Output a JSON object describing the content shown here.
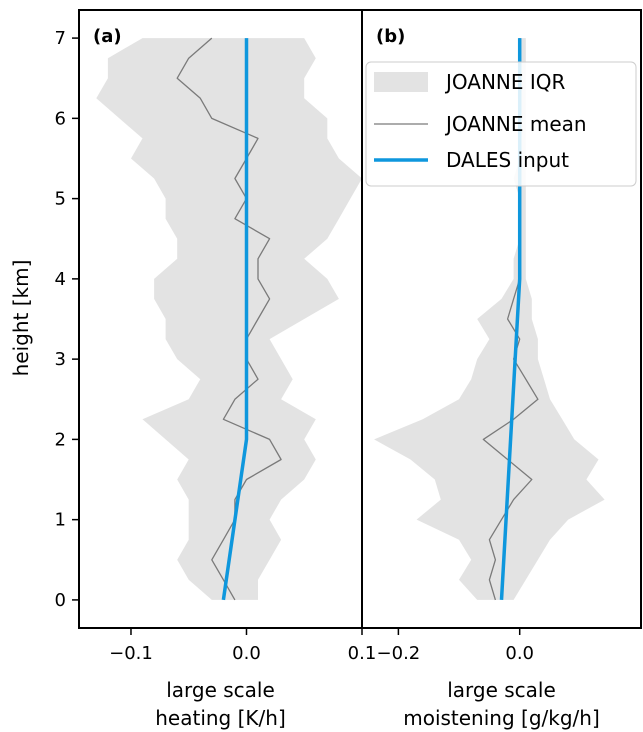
{
  "chart_data": {
    "type": "line",
    "ylabel": "height [km]",
    "ylim": [
      -0.35,
      7.35
    ],
    "yticks": [
      0,
      1,
      2,
      3,
      4,
      5,
      6,
      7
    ],
    "ytick_labels": [
      "0",
      "1",
      "2",
      "3",
      "4",
      "5",
      "6",
      "7"
    ],
    "legend": {
      "placement": "upper right of panel (b)",
      "entries": [
        "JOANNE IQR",
        "JOANNE mean",
        "DALES input"
      ]
    },
    "colors": {
      "iqr": "#e3e3e3",
      "mean": "#7a7a7a",
      "dales": "#0e97dd"
    },
    "panels": [
      {
        "label": "(a)",
        "xlabel_line1": "large scale",
        "xlabel_line2": "heating [K/h]",
        "xlim": [
          -0.145,
          0.1
        ],
        "xticks": [
          -0.1,
          0.0,
          0.1
        ],
        "xtick_labels": [
          "−0.1",
          "0.0",
          "0.1"
        ],
        "series": [
          {
            "name": "JOANNE IQR",
            "kind": "band",
            "heights": [
              0,
              0.25,
              0.5,
              0.75,
              1.0,
              1.25,
              1.5,
              1.75,
              2.0,
              2.25,
              2.5,
              2.75,
              3.0,
              3.25,
              3.5,
              3.75,
              4.0,
              4.25,
              4.5,
              4.75,
              5.0,
              5.25,
              5.5,
              5.75,
              6.0,
              6.25,
              6.5,
              6.75,
              7.0
            ],
            "lower": [
              -0.03,
              -0.05,
              -0.06,
              -0.05,
              -0.05,
              -0.05,
              -0.06,
              -0.05,
              -0.07,
              -0.09,
              -0.05,
              -0.04,
              -0.06,
              -0.07,
              -0.07,
              -0.08,
              -0.08,
              -0.06,
              -0.06,
              -0.07,
              -0.07,
              -0.08,
              -0.1,
              -0.09,
              -0.11,
              -0.13,
              -0.12,
              -0.12,
              -0.09
            ],
            "upper": [
              0.01,
              0.01,
              0.02,
              0.03,
              0.02,
              0.03,
              0.05,
              0.06,
              0.05,
              0.06,
              0.03,
              0.04,
              0.03,
              0.02,
              0.05,
              0.08,
              0.07,
              0.05,
              0.07,
              0.08,
              0.09,
              0.1,
              0.08,
              0.07,
              0.07,
              0.05,
              0.05,
              0.06,
              0.05
            ]
          },
          {
            "name": "JOANNE mean",
            "kind": "line",
            "heights": [
              0,
              0.25,
              0.5,
              0.75,
              1.0,
              1.25,
              1.5,
              1.75,
              2.0,
              2.25,
              2.5,
              2.75,
              3.0,
              3.25,
              3.5,
              3.75,
              4.0,
              4.25,
              4.5,
              4.75,
              5.0,
              5.25,
              5.5,
              5.75,
              6.0,
              6.25,
              6.5,
              6.75,
              7.0
            ],
            "values": [
              -0.01,
              -0.02,
              -0.03,
              -0.02,
              -0.01,
              -0.01,
              0.0,
              0.03,
              0.02,
              -0.02,
              -0.01,
              0.01,
              0.0,
              0.0,
              0.01,
              0.02,
              0.01,
              0.01,
              0.02,
              -0.01,
              0.0,
              -0.01,
              0.0,
              0.01,
              -0.03,
              -0.04,
              -0.06,
              -0.05,
              -0.03
            ]
          },
          {
            "name": "DALES input",
            "kind": "line",
            "heights": [
              0,
              2.0,
              7.0
            ],
            "values": [
              -0.02,
              0.0,
              0.0
            ]
          }
        ]
      },
      {
        "label": "(b)",
        "xlabel_line1": "large scale",
        "xlabel_line2": "moistening [g/kg/h]",
        "xlim": [
          -0.26,
          0.2
        ],
        "xticks": [
          -0.2,
          0.0
        ],
        "xtick_labels": [
          "−0.2",
          "0.0"
        ],
        "series": [
          {
            "name": "JOANNE IQR",
            "kind": "band",
            "heights": [
              0,
              0.25,
              0.5,
              0.75,
              1.0,
              1.25,
              1.5,
              1.75,
              2.0,
              2.25,
              2.5,
              2.75,
              3.0,
              3.25,
              3.5,
              3.75,
              4.0,
              4.25,
              4.5,
              4.75,
              5.0,
              5.25,
              5.5,
              5.75,
              6.0,
              6.25,
              6.5,
              6.75,
              7.0
            ],
            "lower": [
              -0.07,
              -0.1,
              -0.08,
              -0.1,
              -0.17,
              -0.13,
              -0.14,
              -0.18,
              -0.24,
              -0.16,
              -0.1,
              -0.08,
              -0.07,
              -0.05,
              -0.07,
              -0.03,
              -0.01,
              -0.01,
              0.0,
              0.0,
              0.0,
              -0.01,
              0.0,
              0.0,
              0.0,
              0.0,
              0.0,
              0.0,
              0.0
            ],
            "upper": [
              -0.01,
              0.01,
              0.03,
              0.05,
              0.08,
              0.14,
              0.11,
              0.13,
              0.09,
              0.07,
              0.05,
              0.04,
              0.03,
              0.03,
              0.02,
              0.02,
              0.01,
              0.01,
              0.01,
              0.01,
              0.01,
              0.01,
              0.01,
              0.01,
              0.01,
              0.01,
              0.01,
              0.01,
              0.01
            ]
          },
          {
            "name": "JOANNE mean",
            "kind": "line",
            "heights": [
              0,
              0.25,
              0.5,
              0.75,
              1.0,
              1.25,
              1.5,
              1.75,
              2.0,
              2.25,
              2.5,
              2.75,
              3.0,
              3.25,
              3.5,
              3.75,
              4.0,
              4.25,
              4.5,
              4.75,
              5.0,
              5.25,
              5.5,
              5.75,
              6.0,
              6.25,
              6.5,
              6.75,
              7.0
            ],
            "values": [
              -0.04,
              -0.05,
              -0.04,
              -0.05,
              -0.03,
              -0.01,
              0.02,
              -0.02,
              -0.06,
              -0.01,
              0.03,
              0.01,
              -0.01,
              0.0,
              -0.02,
              -0.01,
              0.0,
              0.0,
              0.0,
              0.0,
              0.0,
              0.0,
              0.0,
              0.0,
              0.0,
              0.0,
              0.0,
              0.0,
              0.0
            ]
          },
          {
            "name": "DALES input",
            "kind": "line",
            "heights": [
              0,
              4.0,
              7.0
            ],
            "values": [
              -0.03,
              0.0,
              0.0
            ]
          }
        ]
      }
    ]
  }
}
